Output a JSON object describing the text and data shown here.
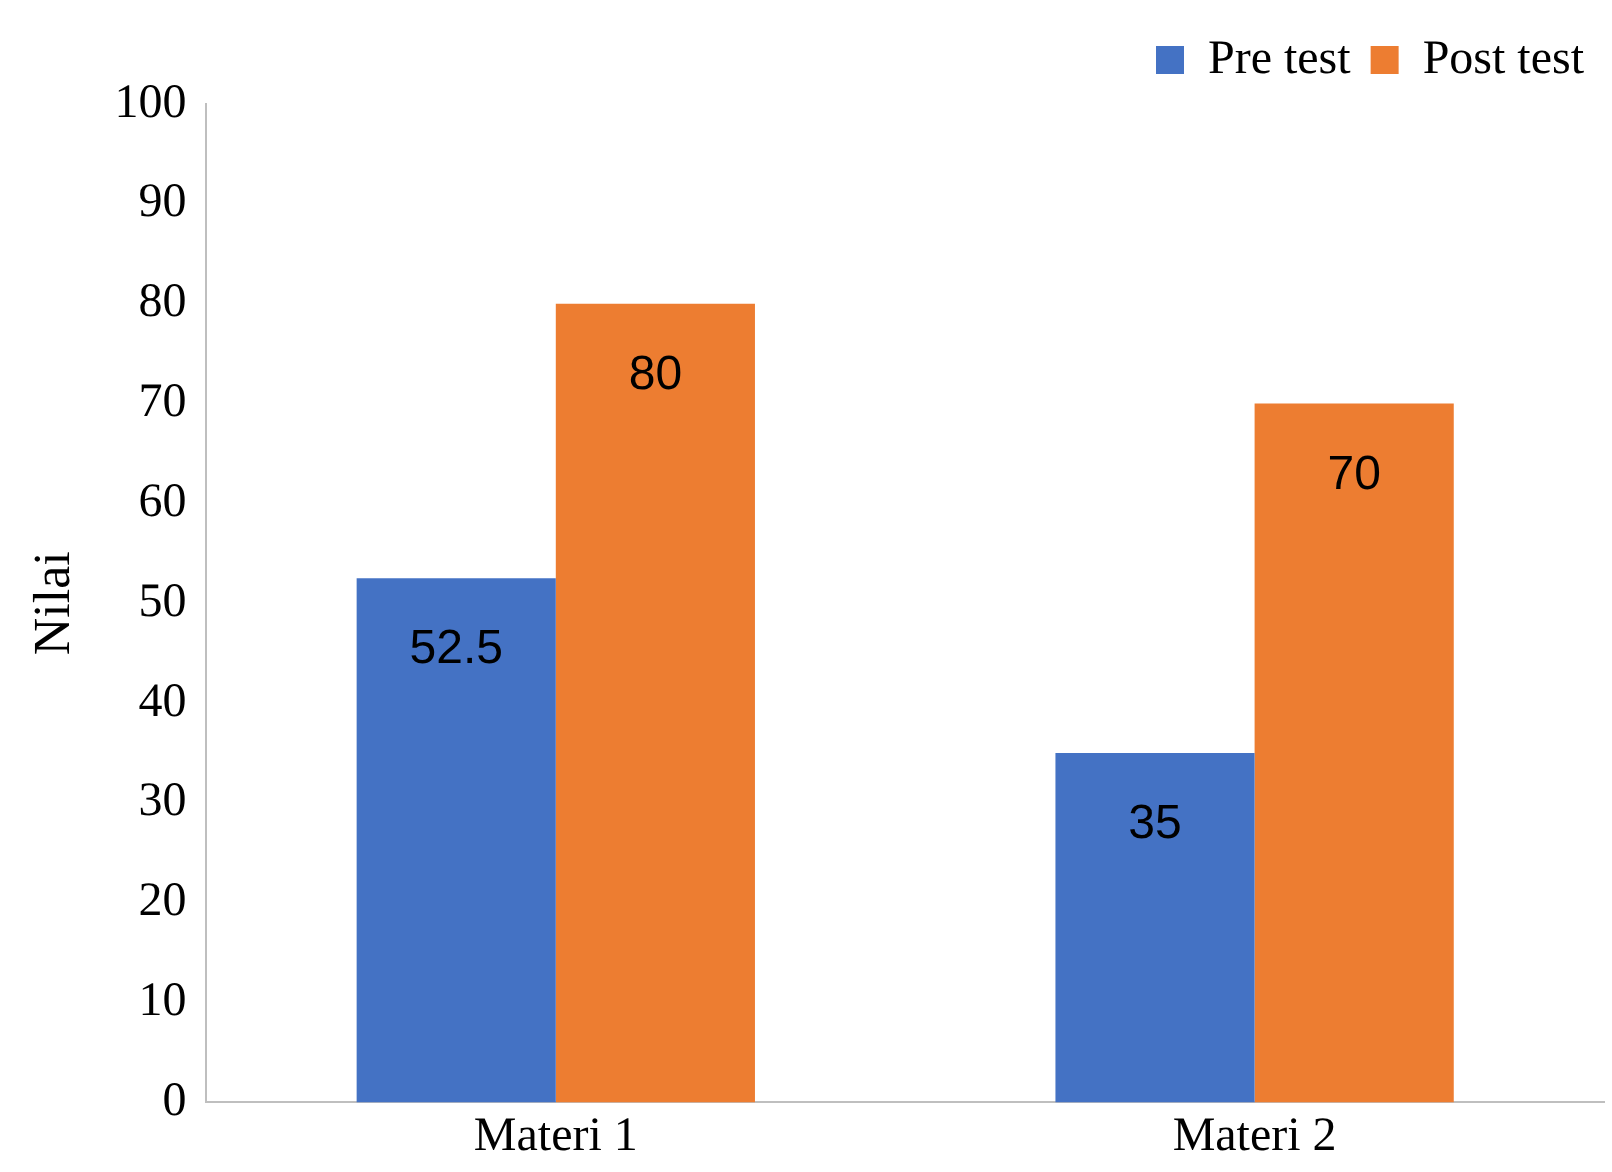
{
  "chart_data": {
    "type": "bar",
    "ylabel": "Nilai",
    "categories": [
      "Materi 1",
      "Materi 2"
    ],
    "series": [
      {
        "name": "Pre test",
        "color": "#4472c4",
        "values": [
          52.5,
          35
        ]
      },
      {
        "name": "Post test",
        "color": "#ed7d31",
        "values": [
          80,
          70
        ]
      }
    ],
    "ylim": [
      0,
      100
    ],
    "yticks": [
      0,
      10,
      20,
      30,
      40,
      50,
      60,
      70,
      80,
      90,
      100
    ],
    "grid": false,
    "legend": "top right",
    "data_labels": true
  }
}
